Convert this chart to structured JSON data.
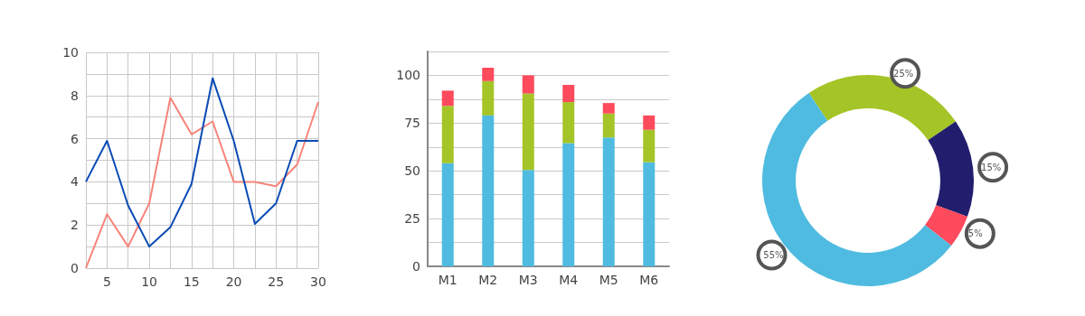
{
  "chart_data": [
    {
      "type": "line",
      "x": [
        2.5,
        5,
        7.5,
        10,
        12.5,
        15,
        17.5,
        20,
        22.5,
        25,
        27.5,
        30
      ],
      "series": [
        {
          "color": "#f7847a",
          "values": [
            0,
            2.5,
            1,
            3,
            7.9,
            6.2,
            6.8,
            4,
            4,
            3.8,
            4.8,
            7.7
          ]
        },
        {
          "color": "#0a4bb5",
          "values": [
            4,
            5.9,
            2.9,
            1,
            1.9,
            3.9,
            8.8,
            5.9,
            2.05,
            3,
            5.9,
            5.9
          ]
        }
      ],
      "xlim": [
        2.5,
        30
      ],
      "xticks": [
        {
          "value": 2.5,
          "label": null
        },
        5,
        {
          "value": 7.5,
          "label": null
        },
        10,
        {
          "value": 12.5,
          "label": null
        },
        15,
        {
          "value": 17.5,
          "label": null
        },
        20,
        {
          "value": 22.5,
          "label": null
        },
        25,
        {
          "value": 27.5,
          "label": null
        },
        30
      ],
      "ylim": [
        0,
        10
      ],
      "yticks": [
        0,
        {
          "value": 1,
          "label": null
        },
        2,
        {
          "value": 3,
          "label": null
        },
        4,
        {
          "value": 5,
          "label": null
        },
        6,
        {
          "value": 7,
          "label": null
        },
        8,
        {
          "value": 9,
          "label": null
        },
        10
      ],
      "grid": true,
      "marker": "none",
      "line_style": "solid"
    },
    {
      "type": "bar",
      "stacked": true,
      "categories": [
        "M1",
        "M2",
        "M3",
        "M4",
        "M5",
        "M6"
      ],
      "series": [
        {
          "color": "#4fbbe0",
          "values": [
            54,
            79,
            50.5,
            64.5,
            67.5,
            54.5
          ]
        },
        {
          "color": "#a5c427",
          "values": [
            30,
            18,
            40,
            21.5,
            12.5,
            17
          ]
        },
        {
          "color": "#fd4a5c",
          "values": [
            8,
            7,
            9.5,
            9,
            5.5,
            7.5
          ]
        }
      ],
      "ylim": [
        0,
        112.5
      ],
      "yticks": [
        0,
        {
          "value": 12.5,
          "label": null
        },
        25,
        {
          "value": 37.5,
          "label": null
        },
        50,
        {
          "value": 62.5,
          "label": null
        },
        75,
        {
          "value": 87.5,
          "label": null
        },
        100,
        {
          "value": 112.5,
          "label": null
        }
      ],
      "grid": "y"
    },
    {
      "type": "donut",
      "categories": [
        null,
        null,
        null,
        null
      ],
      "values": [
        25,
        15,
        5,
        55
      ],
      "colors": [
        "#a5c427",
        "#221e6e",
        "#fd4a5c",
        "#4fbbe0"
      ],
      "value_labels": [
        "25%",
        "15%",
        "5%",
        "55%"
      ]
    }
  ]
}
